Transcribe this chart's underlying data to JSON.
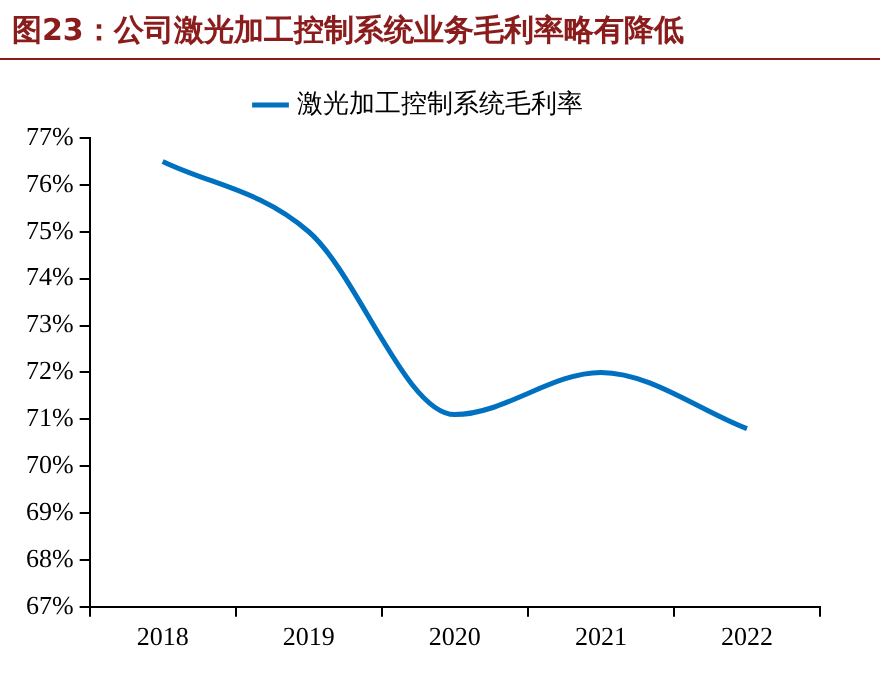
{
  "chart_data": {
    "type": "line",
    "title": "图23：公司激光加工控制系统业务毛利率略有降低",
    "categories": [
      "2018",
      "2019",
      "2020",
      "2021",
      "2022"
    ],
    "series": [
      {
        "name": "激光加工控制系统毛利率",
        "color": "#0070c0",
        "values": [
          76.5,
          75.0,
          71.1,
          72.0,
          70.8
        ]
      }
    ],
    "ylim": [
      67,
      77
    ],
    "yticks": [
      {
        "value": 67,
        "label": "67%"
      },
      {
        "value": 68,
        "label": "68%"
      },
      {
        "value": 69,
        "label": "69%"
      },
      {
        "value": 70,
        "label": "70%"
      },
      {
        "value": 71,
        "label": "71%"
      },
      {
        "value": 72,
        "label": "72%"
      },
      {
        "value": 73,
        "label": "73%"
      },
      {
        "value": 74,
        "label": "74%"
      },
      {
        "value": 75,
        "label": "75%"
      },
      {
        "value": 76,
        "label": "76%"
      },
      {
        "value": 77,
        "label": "77%"
      }
    ],
    "legend": "top",
    "marker": "none",
    "line_style": "solid"
  }
}
